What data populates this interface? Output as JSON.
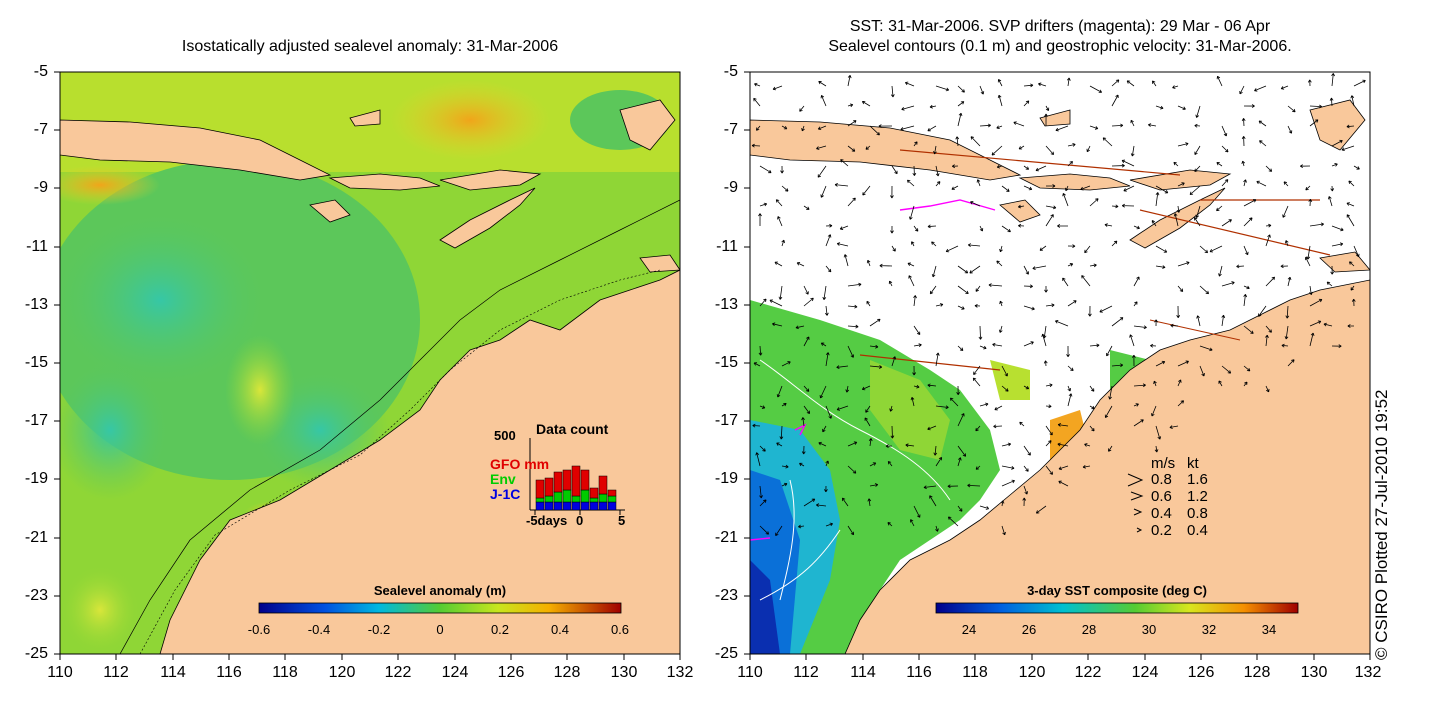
{
  "left_panel": {
    "title": "Isostatically adjusted sealevel anomaly: 31-Mar-2006",
    "y_ticks": [
      "-5",
      "-7",
      "-9",
      "-11",
      "-13",
      "-15",
      "-17",
      "-19",
      "-21",
      "-23",
      "-25"
    ],
    "x_ticks": [
      "110",
      "112",
      "114",
      "116",
      "118",
      "120",
      "122",
      "124",
      "126",
      "128",
      "130",
      "132"
    ],
    "colorbar": {
      "title": "Sealevel anomaly (m)",
      "ticks": [
        "-0.6",
        "-0.4",
        "-0.2",
        "0",
        "0.2",
        "0.4",
        "0.6"
      ]
    },
    "data_count": {
      "title": "Data count",
      "max_label": "500",
      "series": [
        {
          "name": "GFO mm",
          "color": "#e00000"
        },
        {
          "name": "Env",
          "color": "#00cc00"
        },
        {
          "name": "J-1C",
          "color": "#0000e0"
        }
      ],
      "x_labels": [
        "-5days",
        "0",
        "5"
      ]
    }
  },
  "right_panel": {
    "title_line1": "SST: 31-Mar-2006. SVP drifters (magenta): 29 Mar - 06 Apr",
    "title_line2": "Sealevel contours (0.1 m) and geostrophic velocity: 31-Mar-2006.",
    "y_ticks": [
      "-5",
      "-7",
      "-9",
      "-11",
      "-13",
      "-15",
      "-17",
      "-19",
      "-21",
      "-23",
      "-25"
    ],
    "x_ticks": [
      "110",
      "112",
      "114",
      "116",
      "118",
      "120",
      "122",
      "124",
      "126",
      "128",
      "130",
      "132"
    ],
    "colorbar": {
      "title": "3-day SST composite (deg C)",
      "ticks": [
        "24",
        "26",
        "28",
        "30",
        "32",
        "34"
      ]
    },
    "velocity_legend": {
      "header_ms": "m/s",
      "header_kt": "kt",
      "rows": [
        {
          "ms": "0.8",
          "kt": "1.6"
        },
        {
          "ms": "0.6",
          "kt": "1.2"
        },
        {
          "ms": "0.4",
          "kt": "0.8"
        },
        {
          "ms": "0.2",
          "kt": "0.4"
        }
      ]
    }
  },
  "copyright": "© CSIRO Plotted 27-Jul-2010 19:52",
  "colors": {
    "land": "#f9c89b",
    "sla_low": "#00008b",
    "sla_mid": "#66cc22",
    "sla_high": "#a00000",
    "drifter": "#ff00ff"
  }
}
